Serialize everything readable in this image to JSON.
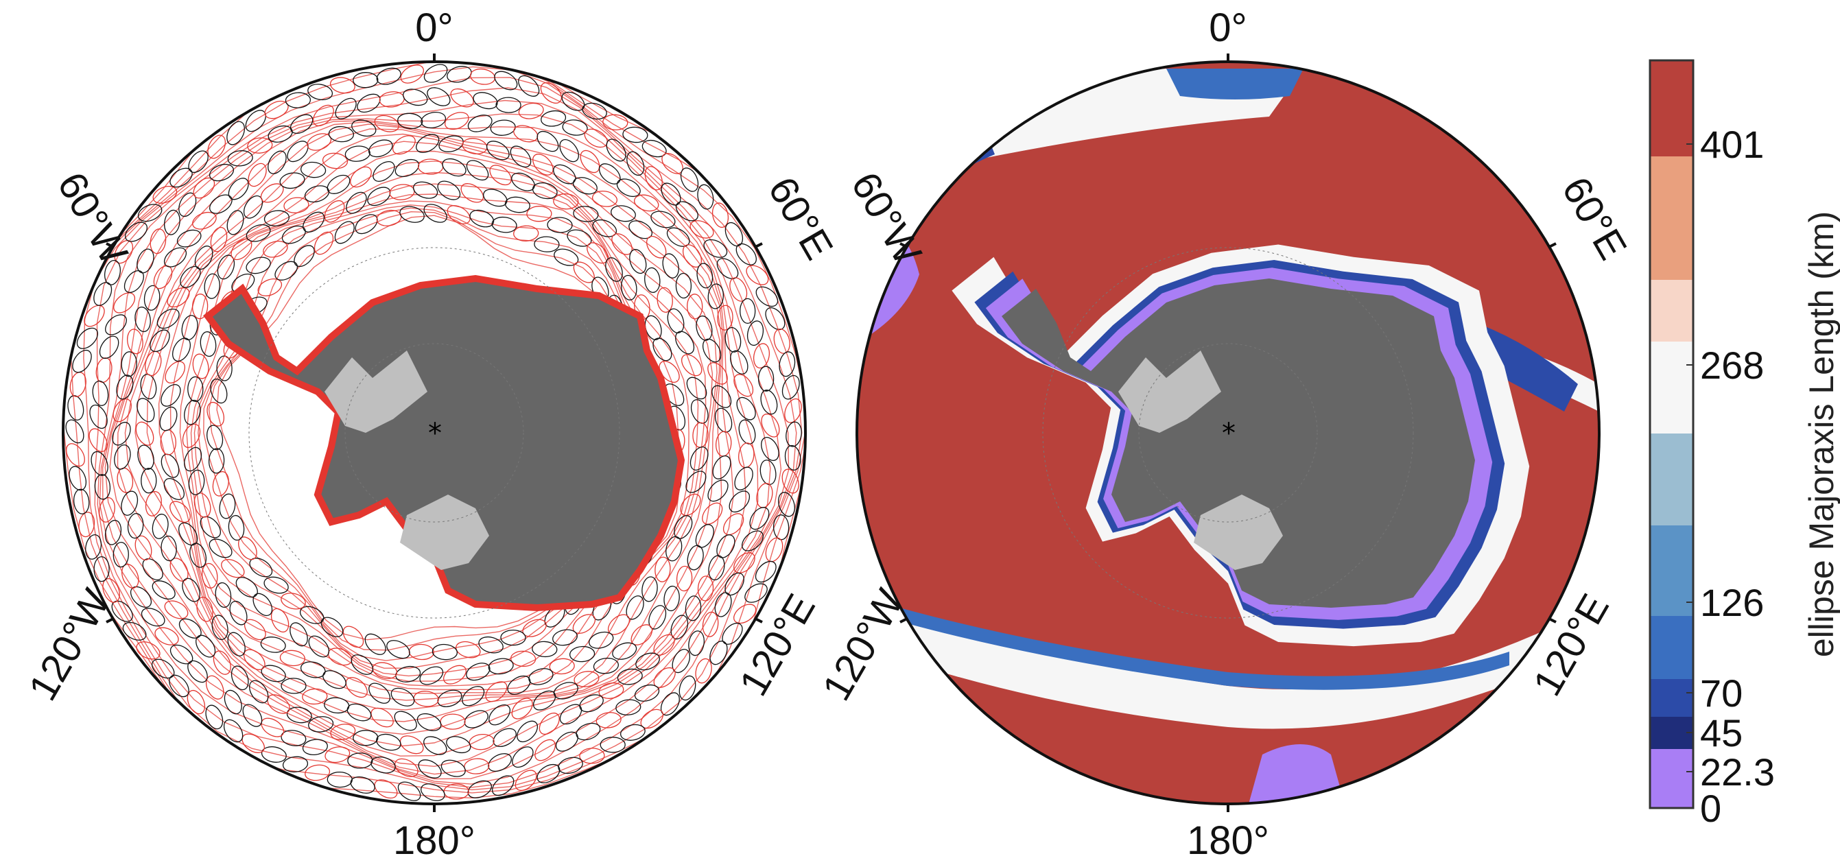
{
  "maps": [
    {
      "name": "ellipse-map",
      "lon_labels": {
        "top": "0°",
        "upper_left": "60°W",
        "upper_right": "60°E",
        "lower_left": "120°W",
        "lower_right": "120°E",
        "bottom": "180°"
      }
    },
    {
      "name": "majoraxis-map",
      "lon_labels": {
        "top": "0°",
        "upper_left": "60°W",
        "upper_right": "60°E",
        "lower_left": "120°W",
        "lower_right": "120°E",
        "bottom": "180°"
      }
    }
  ],
  "colorbar": {
    "title": "ellipse Majoraxis Length (km)",
    "tick_labels": [
      "0",
      "22.3",
      "45",
      "70",
      "126",
      "268",
      "401"
    ],
    "colors": {
      "c0": "#a97ef5",
      "c1": "#1f2d7a",
      "c2": "#2c4ba8",
      "c3": "#3a6fc0",
      "c4": "#5b93c6",
      "c5": "#9bbdd1",
      "c6": "#f6f6f6",
      "c7": "#f7d6c8",
      "c8": "#e9a07e",
      "c9": "#b8413b"
    }
  },
  "colors": {
    "land": "#666666",
    "ice_shelf": "#bfbfbf",
    "ocean_background": "#ffffff",
    "contour_red": "#e3362f",
    "ellipse_black": "#111111"
  }
}
